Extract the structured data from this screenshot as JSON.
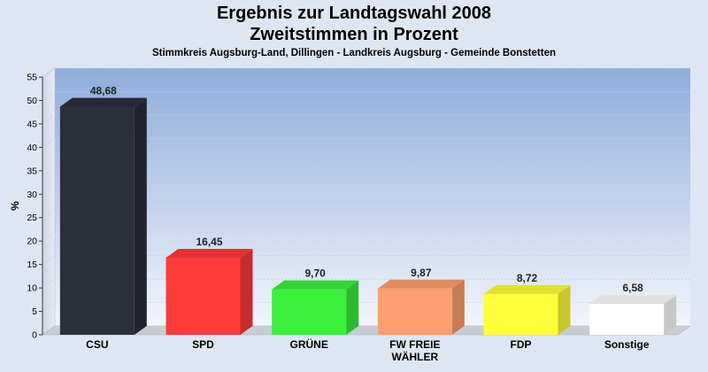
{
  "header": {
    "title_line1": "Ergebnis zur Landtagswahl 2008",
    "title_line2": "Zweitstimmen in Prozent",
    "subtitle": "Stimmkreis Augsburg-Land, Dillingen - Landkreis Augsburg - Gemeinde Bonstetten"
  },
  "chart_data": {
    "type": "bar",
    "categories": [
      "CSU",
      "SPD",
      "GRÜNE",
      "FW FREIE WÄHLER",
      "FDP",
      "Sonstige"
    ],
    "category_lines": [
      [
        "CSU"
      ],
      [
        "SPD"
      ],
      [
        "GRÜNE"
      ],
      [
        "FW FREIE",
        "WÄHLER"
      ],
      [
        "FDP"
      ],
      [
        "Sonstige"
      ]
    ],
    "values": [
      48.68,
      16.45,
      9.7,
      9.87,
      8.72,
      6.58
    ],
    "value_labels": [
      "48,68",
      "16,45",
      "9,70",
      "9,87",
      "8,72",
      "6,58"
    ],
    "colors": [
      "#2b2f3a",
      "#ff3a3a",
      "#3aef3a",
      "#ff9e6e",
      "#ffff3a",
      "#ffffff"
    ],
    "ylabel": "%",
    "ylim": [
      0,
      55
    ],
    "yticks": [
      0,
      5,
      10,
      15,
      20,
      25,
      30,
      35,
      40,
      45,
      50,
      55
    ],
    "grid": true
  }
}
